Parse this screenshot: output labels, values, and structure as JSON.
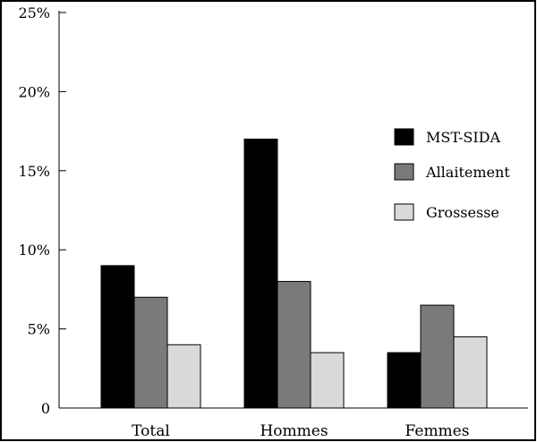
{
  "chart_data": {
    "type": "bar",
    "categories": [
      "Total",
      "Hommes",
      "Femmes"
    ],
    "series": [
      {
        "name": "MST-SIDA",
        "values": [
          9,
          17,
          3.5
        ],
        "color": "#000000"
      },
      {
        "name": "Allaitement",
        "values": [
          7,
          8,
          6.5
        ],
        "color": "#7a7a7a"
      },
      {
        "name": "Grossesse",
        "values": [
          4,
          3.5,
          4.5
        ],
        "color": "#d9d9d9"
      }
    ],
    "ylim": [
      0,
      25
    ],
    "yticks": [
      0,
      5,
      10,
      15,
      20,
      25
    ],
    "ytick_labels": [
      "0",
      "5%",
      "10%",
      "15%",
      "20%",
      "25%"
    ],
    "title": "",
    "xlabel": "",
    "ylabel": "",
    "legend_position": "right",
    "grid": false
  }
}
